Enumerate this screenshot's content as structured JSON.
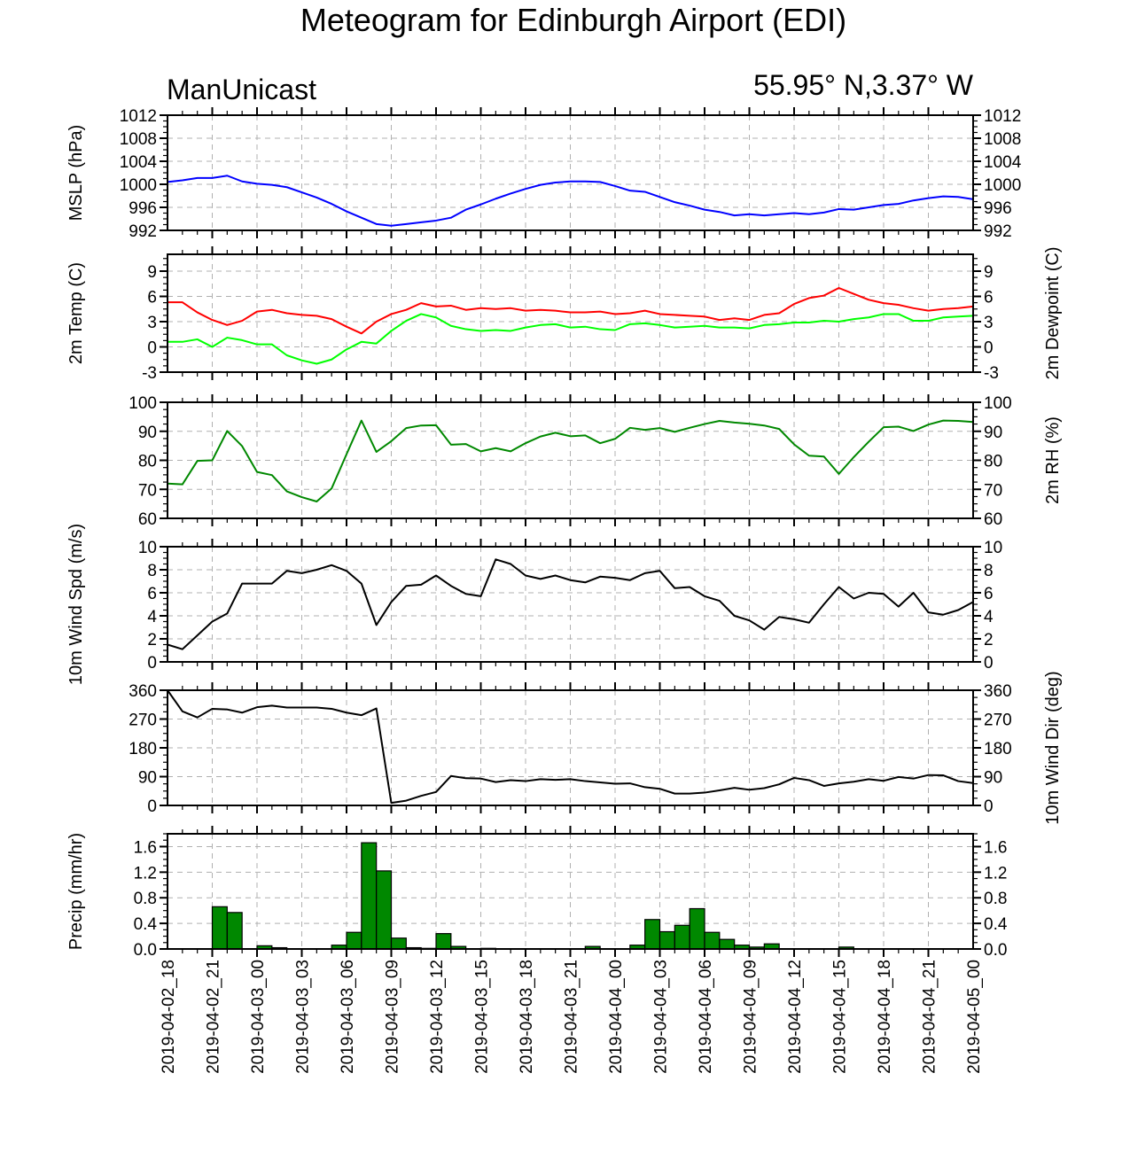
{
  "chart_data": {
    "type": "line",
    "title": "Meteogram for Edinburgh Airport (EDI)",
    "model_label": "ManUnicast",
    "location_label": "55.95° N,3.37° W",
    "x_tick_labels": [
      "2019-04-02_18",
      "2019-04-02_21",
      "2019-04-03_00",
      "2019-04-03_03",
      "2019-04-03_06",
      "2019-04-03_09",
      "2019-04-03_12",
      "2019-04-03_15",
      "2019-04-03_18",
      "2019-04-03_21",
      "2019-04-04_00",
      "2019-04-04_03",
      "2019-04-04_06",
      "2019-04-04_09",
      "2019-04-04_12",
      "2019-04-04_15",
      "2019-04-04_18",
      "2019-04-04_21",
      "2019-04-05_00"
    ],
    "x_range_hours": [
      0,
      54
    ],
    "panels": [
      {
        "id": "mslp",
        "ylabel_left": "MSLP (hPa)",
        "ylabel_right": "",
        "ylim": [
          992,
          1012
        ],
        "yticks": [
          992,
          996,
          1000,
          1004,
          1008,
          1012
        ],
        "right_ticks": true,
        "series": [
          {
            "color": "#0000ff",
            "values": [
              1000.4,
              1000.7,
              1001.1,
              1001.1,
              1001.5,
              1000.5,
              1000.1,
              999.9,
              999.5,
              998.6,
              997.7,
              996.6,
              995.3,
              994.2,
              993.1,
              992.8,
              993.1,
              993.4,
              993.7,
              994.2,
              995.6,
              996.5,
              997.5,
              998.4,
              999.2,
              999.9,
              1000.3,
              1000.5,
              1000.5,
              1000.4,
              999.7,
              998.9,
              998.7,
              997.8,
              996.9,
              996.3,
              995.6,
              995.2,
              994.6,
              994.8,
              994.6,
              994.8,
              995.0,
              994.8,
              995.1,
              995.7,
              995.6,
              996.0,
              996.4,
              996.6,
              997.2,
              997.6,
              997.9,
              997.8,
              997.4
            ]
          }
        ]
      },
      {
        "id": "temp",
        "ylabel_left": "2m Temp (C)",
        "ylabel_right": "2m Dewpoint (C)",
        "ylim": [
          -3,
          11
        ],
        "yticks": [
          -3,
          0,
          3,
          6,
          9
        ],
        "right_ticks": true,
        "series": [
          {
            "color": "#ff0000",
            "values": [
              5.3,
              5.3,
              4.1,
              3.2,
              2.6,
              3.1,
              4.2,
              4.4,
              4.0,
              3.8,
              3.7,
              3.3,
              2.4,
              1.6,
              3.0,
              3.9,
              4.4,
              5.2,
              4.8,
              4.9,
              4.4,
              4.6,
              4.5,
              4.6,
              4.3,
              4.4,
              4.3,
              4.1,
              4.1,
              4.2,
              3.9,
              4.0,
              4.3,
              3.9,
              3.8,
              3.7,
              3.6,
              3.2,
              3.4,
              3.2,
              3.8,
              4.0,
              5.1,
              5.8,
              6.1,
              7.0,
              6.3,
              5.6,
              5.2,
              5.0,
              4.6,
              4.3,
              4.5,
              4.6,
              4.8
            ]
          },
          {
            "color": "#00ff00",
            "values": [
              0.6,
              0.6,
              0.9,
              0.0,
              1.1,
              0.8,
              0.3,
              0.3,
              -1.0,
              -1.6,
              -2.0,
              -1.5,
              -0.3,
              0.6,
              0.4,
              1.9,
              3.1,
              3.9,
              3.5,
              2.5,
              2.1,
              1.9,
              2.0,
              1.9,
              2.3,
              2.6,
              2.7,
              2.3,
              2.4,
              2.1,
              2.0,
              2.7,
              2.8,
              2.6,
              2.3,
              2.4,
              2.5,
              2.3,
              2.3,
              2.2,
              2.6,
              2.7,
              2.9,
              2.9,
              3.1,
              3.0,
              3.3,
              3.5,
              3.9,
              3.9,
              3.1,
              3.1,
              3.5,
              3.6,
              3.7
            ]
          }
        ]
      },
      {
        "id": "rh",
        "ylabel_left": "",
        "ylabel_right": "2m RH (%)",
        "ylim": [
          60,
          100
        ],
        "yticks": [
          60,
          70,
          80,
          90,
          100
        ],
        "right_ticks": true,
        "series": [
          {
            "color": "#008800",
            "values": [
              72,
              71.7,
              79.8,
              80,
              90.1,
              84.9,
              76,
              74.9,
              69.3,
              67.3,
              65.8,
              70.3,
              82.1,
              93.7,
              82.9,
              86.6,
              91.1,
              92,
              92.1,
              85.4,
              85.6,
              83.1,
              84.2,
              83.1,
              85.9,
              88.2,
              89.5,
              88.3,
              88.6,
              85.9,
              87.4,
              91.2,
              90.5,
              91.1,
              89.8,
              91.2,
              92.5,
              93.6,
              93,
              92.6,
              92,
              90.8,
              85.5,
              81.6,
              81.3,
              75.3,
              81.1,
              86.4,
              91.4,
              91.6,
              90.1,
              92.3,
              93.7,
              93.6,
              93.2
            ]
          }
        ]
      },
      {
        "id": "wspd",
        "ylabel_left": "10m Wind Spd (m/s)",
        "ylabel_right": "",
        "ylim": [
          0,
          10
        ],
        "yticks": [
          0,
          2,
          4,
          6,
          8,
          10
        ],
        "right_ticks": true,
        "series": [
          {
            "color": "#000000",
            "values": [
              1.5,
              1.1,
              2.3,
              3.5,
              4.2,
              6.8,
              6.8,
              6.8,
              7.9,
              7.7,
              8.0,
              8.4,
              7.9,
              6.8,
              3.2,
              5.2,
              6.6,
              6.7,
              7.5,
              6.6,
              5.9,
              5.7,
              8.9,
              8.5,
              7.5,
              7.2,
              7.5,
              7.1,
              6.9,
              7.4,
              7.3,
              7.1,
              7.7,
              7.9,
              6.4,
              6.5,
              5.7,
              5.3,
              4.0,
              3.6,
              2.8,
              3.9,
              3.7,
              3.4,
              5.0,
              6.5,
              5.5,
              6.0,
              5.9,
              4.8,
              6.0,
              4.3,
              4.1,
              4.5,
              5.2
            ]
          }
        ]
      },
      {
        "id": "wdir",
        "ylabel_left": "",
        "ylabel_right": "10m Wind Dir (deg)",
        "ylim": [
          0,
          360
        ],
        "yticks": [
          0,
          90,
          180,
          270,
          360
        ],
        "right_ticks": true,
        "series": [
          {
            "color": "#000000",
            "values": [
              360,
              294,
              275,
              302,
              300,
              290,
              307,
              312,
              306,
              306,
              306,
              302,
              290,
              282,
              303,
              8,
              15,
              30,
              42,
              92,
              85,
              84,
              73,
              79,
              76,
              82,
              80,
              82,
              76,
              72,
              68,
              69,
              57,
              52,
              37,
              37,
              40,
              47,
              55,
              49,
              54,
              66,
              86,
              79,
              61,
              69,
              74,
              82,
              77,
              89,
              84,
              95,
              94,
              76,
              70
            ]
          }
        ]
      },
      {
        "id": "precip",
        "type": "bar",
        "ylabel_left": "Precip (mm/hr)",
        "ylabel_right": "",
        "ylim": [
          0,
          1.8
        ],
        "yticks": [
          0.0,
          0.4,
          0.8,
          1.2,
          1.6
        ],
        "ytick_labels": [
          "0.0",
          "0.4",
          "0.8",
          "1.2",
          "1.6"
        ],
        "right_ticks": true,
        "bar_color": "#008800",
        "values": [
          0,
          0,
          0,
          0.66,
          0.57,
          0,
          0.05,
          0.02,
          0,
          0,
          0,
          0.06,
          0.26,
          1.66,
          1.22,
          0.17,
          0.02,
          0.01,
          0.24,
          0.04,
          0,
          0.01,
          0,
          0,
          0,
          0,
          0,
          0,
          0.04,
          0,
          0,
          0.06,
          0.46,
          0.27,
          0.37,
          0.63,
          0.26,
          0.15,
          0.06,
          0.03,
          0.08,
          0,
          0,
          0,
          0,
          0.03,
          0,
          0,
          0,
          0,
          0,
          0,
          0,
          0
        ]
      }
    ]
  }
}
